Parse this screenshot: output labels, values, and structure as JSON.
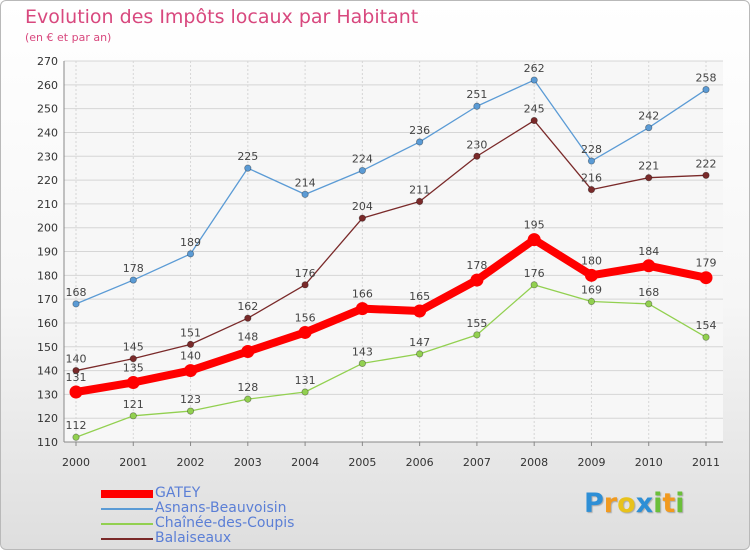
{
  "header": {
    "title": "Evolution des Impôts locaux par Habitant",
    "subtitle": "(en € et par an)"
  },
  "logo": {
    "letters": [
      "P",
      "r",
      "o",
      "x",
      "i",
      "t",
      "i"
    ],
    "colors": [
      "#2e8fd6",
      "#f19a1f",
      "#e8c21b",
      "#2e8fd6",
      "#6bbf3a",
      "#f19a1f",
      "#6bbf3a"
    ]
  },
  "chart_data": {
    "type": "line",
    "title": "Evolution des Impôts locaux par Habitant",
    "subtitle": "(en € et par an)",
    "x": [
      "2000",
      "2001",
      "2002",
      "2003",
      "2004",
      "2005",
      "2006",
      "2007",
      "2008",
      "2009",
      "2010",
      "2011"
    ],
    "ylim": [
      110,
      270
    ],
    "yticks": [
      110,
      120,
      130,
      140,
      150,
      160,
      170,
      180,
      190,
      200,
      210,
      220,
      230,
      240,
      250,
      260,
      270
    ],
    "grid": true,
    "legend_position": "bottom-left",
    "series": [
      {
        "name": "Asnans-Beauvoisin",
        "color": "#5b9bd5",
        "values": [
          168,
          178,
          189,
          225,
          214,
          224,
          236,
          251,
          262,
          228,
          242,
          258
        ]
      },
      {
        "name": "Balaiseaux",
        "color": "#7a2a2a",
        "values": [
          140,
          145,
          151,
          162,
          176,
          204,
          211,
          230,
          245,
          216,
          221,
          222
        ]
      },
      {
        "name": "Chaînée-des-Coupis",
        "color": "#92d050",
        "values": [
          112,
          121,
          123,
          128,
          131,
          143,
          147,
          155,
          176,
          169,
          168,
          154
        ]
      },
      {
        "name": "GATEY",
        "color": "#ff0000",
        "values": [
          131,
          135,
          140,
          148,
          156,
          166,
          165,
          178,
          195,
          180,
          184,
          179
        ]
      }
    ],
    "legend_order": [
      "GATEY",
      "Asnans-Beauvoisin",
      "Chaînée-des-Coupis",
      "Balaiseaux"
    ]
  }
}
